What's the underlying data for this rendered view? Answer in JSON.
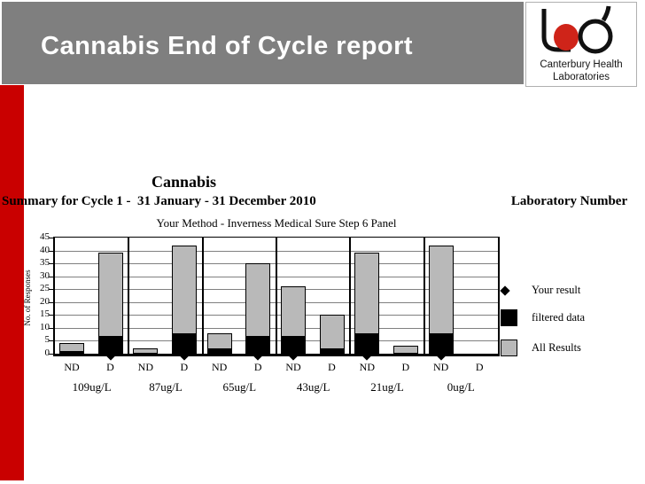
{
  "header": {
    "title": "Cannabis End of Cycle report",
    "logo_name": "canterbury-health-laboratories-logo",
    "logo_text_line1": "Canterbury Health",
    "logo_text_line2": "Laboratories"
  },
  "report": {
    "title": "Cannabis",
    "summary_line": "Summary for Cycle 1 -  31 January - 31 December 2010",
    "lab_number_label": "Laboratory Number"
  },
  "chart_data": {
    "type": "bar",
    "title": "Your Method - Inverness Medical Sure Step 6 Panel",
    "ylabel": "No. of Responses",
    "ylim": [
      0,
      45
    ],
    "ytick_step": 5,
    "grid": true,
    "bar_sublabels": [
      "ND",
      "D"
    ],
    "groups": [
      {
        "label": "109ug/L",
        "your_result": "D",
        "bars": [
          {
            "label": "ND",
            "all_results": 4,
            "filtered_data": 1
          },
          {
            "label": "D",
            "all_results": 39,
            "filtered_data": 7
          }
        ]
      },
      {
        "label": "87ug/L",
        "your_result": "D",
        "bars": [
          {
            "label": "ND",
            "all_results": 2,
            "filtered_data": 0
          },
          {
            "label": "D",
            "all_results": 42,
            "filtered_data": 8
          }
        ]
      },
      {
        "label": "65ug/L",
        "your_result": "D",
        "bars": [
          {
            "label": "ND",
            "all_results": 8,
            "filtered_data": 2
          },
          {
            "label": "D",
            "all_results": 35,
            "filtered_data": 7
          }
        ]
      },
      {
        "label": "43ug/L",
        "your_result": "ND",
        "bars": [
          {
            "label": "ND",
            "all_results": 26,
            "filtered_data": 7
          },
          {
            "label": "D",
            "all_results": 15,
            "filtered_data": 2
          }
        ]
      },
      {
        "label": "21ug/L",
        "your_result": "ND",
        "bars": [
          {
            "label": "ND",
            "all_results": 39,
            "filtered_data": 8
          },
          {
            "label": "D",
            "all_results": 3,
            "filtered_data": 0
          }
        ]
      },
      {
        "label": "0ug/L",
        "your_result": "ND",
        "bars": [
          {
            "label": "ND",
            "all_results": 42,
            "filtered_data": 8
          },
          {
            "label": "D",
            "all_results": 0,
            "filtered_data": 0
          }
        ]
      }
    ],
    "legend": [
      {
        "marker": "diamond-icon",
        "label": "Your result"
      },
      {
        "marker": "black-square-icon",
        "label": "filtered data"
      },
      {
        "marker": "gray-square-icon",
        "label": "All Results"
      }
    ],
    "legend_position": "right"
  },
  "colors": {
    "banner_gray": "#7f7f7f",
    "accent_red": "#c90000",
    "logo_red": "#cf2419",
    "bar_all_results_gray": "#b9b9b9",
    "bar_filtered_black": "#000000",
    "gridline": "#808080"
  }
}
